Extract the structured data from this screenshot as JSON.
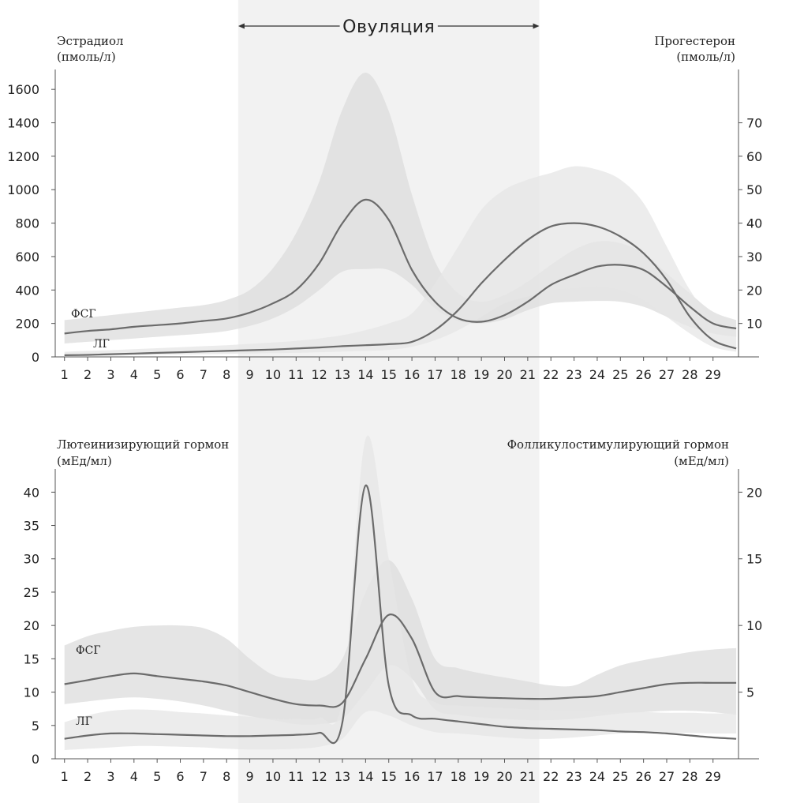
{
  "chart_data": [
    {
      "type": "area",
      "title": "",
      "shaded_region_label": "Овуляция",
      "shaded_region": [
        8.5,
        21.5
      ],
      "x": [
        1,
        2,
        3,
        4,
        5,
        6,
        7,
        8,
        9,
        10,
        11,
        12,
        13,
        14,
        15,
        16,
        17,
        18,
        19,
        20,
        21,
        22,
        23,
        24,
        25,
        26,
        27,
        28,
        29,
        30
      ],
      "xticks": [
        1,
        2,
        3,
        4,
        5,
        6,
        7,
        8,
        9,
        10,
        11,
        12,
        13,
        14,
        15,
        16,
        17,
        18,
        19,
        20,
        21,
        22,
        23,
        24,
        25,
        26,
        27,
        28,
        29
      ],
      "xlim": [
        0.6,
        30.1
      ],
      "y_left": {
        "label_line1": "Эстрадиол",
        "label_line2": "(пмоль/л)",
        "ylim": [
          0,
          1700
        ],
        "ticks": [
          0,
          200,
          400,
          600,
          800,
          1000,
          1200,
          1400,
          1600
        ]
      },
      "y_right": {
        "label_line1": "Прогестерон",
        "label_line2": "(пмоль/л)",
        "ylim": [
          0,
          85
        ],
        "ticks": [
          10,
          20,
          30,
          40,
          50,
          60,
          70
        ],
        "tick_labels": [
          "10",
          "20",
          "30",
          "40",
          "50",
          "60",
          "70"
        ]
      },
      "series": [
        {
          "label": "ФСГ",
          "axis": "left",
          "values": [
            140,
            155,
            165,
            180,
            190,
            200,
            215,
            230,
            265,
            320,
            400,
            560,
            800,
            940,
            820,
            520,
            330,
            230,
            210,
            250,
            330,
            430,
            490,
            540,
            550,
            520,
            420,
            300,
            200,
            170
          ],
          "band_low": [
            80,
            90,
            100,
            110,
            120,
            130,
            140,
            155,
            185,
            230,
            300,
            400,
            510,
            525,
            520,
            430,
            290,
            215,
            200,
            225,
            280,
            320,
            330,
            335,
            330,
            300,
            240,
            180,
            140,
            120
          ],
          "band_high": [
            220,
            235,
            250,
            265,
            280,
            295,
            310,
            340,
            400,
            530,
            740,
            1050,
            1480,
            1700,
            1470,
            970,
            570,
            380,
            330,
            370,
            450,
            550,
            640,
            690,
            680,
            620,
            500,
            380,
            270,
            220
          ]
        },
        {
          "label": "ЛГ",
          "axis": "right",
          "values": [
            0.5,
            0.6,
            0.8,
            1.0,
            1.2,
            1.4,
            1.6,
            1.8,
            2.0,
            2.2,
            2.5,
            2.8,
            3.2,
            3.5,
            3.8,
            4.5,
            8,
            14,
            22,
            29,
            35,
            39,
            40,
            39,
            36,
            31,
            23,
            12,
            5,
            2.5
          ],
          "band_low": [
            0.2,
            0.3,
            0.4,
            0.5,
            0.6,
            0.7,
            0.8,
            0.9,
            1.0,
            1.1,
            1.2,
            1.4,
            1.6,
            1.8,
            2.1,
            3,
            5,
            8,
            12,
            16,
            18,
            20,
            20.5,
            21,
            20,
            17,
            12,
            7,
            3,
            1.5
          ],
          "band_high": [
            1.5,
            1.8,
            2,
            2.3,
            2.6,
            2.9,
            3.2,
            3.5,
            3.9,
            4.3,
            4.8,
            5.5,
            6.5,
            8,
            10,
            13,
            22,
            33,
            44,
            50,
            53,
            55,
            57,
            56,
            53,
            46,
            33,
            20,
            11,
            8
          ]
        }
      ]
    },
    {
      "type": "area",
      "title": "",
      "x": [
        1,
        2,
        3,
        4,
        5,
        6,
        7,
        8,
        9,
        10,
        11,
        12,
        13,
        14,
        15,
        16,
        17,
        18,
        19,
        20,
        21,
        22,
        23,
        24,
        25,
        26,
        27,
        28,
        29,
        30
      ],
      "xticks": [
        1,
        2,
        3,
        4,
        5,
        6,
        7,
        8,
        9,
        10,
        11,
        12,
        13,
        14,
        15,
        16,
        17,
        18,
        19,
        20,
        21,
        22,
        23,
        24,
        25,
        26,
        27,
        28,
        29
      ],
      "xlim": [
        0.6,
        30.1
      ],
      "y_left": {
        "label": "Лютеинизирующий гормон",
        "unit": "(мЕд/мл)",
        "ylim": [
          0,
          43
        ],
        "ticks": [
          0,
          5,
          10,
          15,
          20,
          25,
          30,
          35,
          40
        ]
      },
      "y_right": {
        "label": "Фолликулостимулирующий гормон",
        "unit": "(мЕд/мл)",
        "ylim": [
          0,
          21.5
        ],
        "ticks": [
          5,
          10,
          15,
          20
        ]
      },
      "series": [
        {
          "label": "ФСГ",
          "axis": "right",
          "values": [
            5.6,
            5.9,
            6.2,
            6.4,
            6.2,
            6.0,
            5.8,
            5.5,
            5.0,
            4.5,
            4.1,
            4.0,
            4.2,
            7.5,
            10.8,
            9.0,
            5.0,
            4.7,
            4.6,
            4.55,
            4.5,
            4.5,
            4.6,
            4.7,
            5.0,
            5.3,
            5.6,
            5.7,
            5.7,
            5.7
          ],
          "band_low": [
            4.1,
            4.3,
            4.5,
            4.6,
            4.5,
            4.3,
            4.0,
            3.6,
            3.2,
            2.9,
            2.6,
            2.6,
            3.0,
            5.0,
            7.0,
            6.0,
            3.7,
            3.3,
            3.1,
            3.0,
            2.9,
            2.9,
            3.0,
            3.2,
            3.4,
            3.5,
            3.6,
            3.6,
            3.5,
            3.3
          ],
          "band_high": [
            8.5,
            9.2,
            9.6,
            9.9,
            10.0,
            10.0,
            9.8,
            9.0,
            7.5,
            6.3,
            6.0,
            6.0,
            7.5,
            12.5,
            14.9,
            12.0,
            7.5,
            6.8,
            6.4,
            6.1,
            5.8,
            5.5,
            5.5,
            6.3,
            7.0,
            7.4,
            7.7,
            8.0,
            8.2,
            8.3
          ]
        },
        {
          "label": "ЛГ",
          "axis": "left",
          "values": [
            3.0,
            3.5,
            3.8,
            3.8,
            3.7,
            3.6,
            3.5,
            3.4,
            3.4,
            3.5,
            3.6,
            3.9,
            5.5,
            41,
            11,
            6.5,
            6.0,
            5.6,
            5.2,
            4.8,
            4.6,
            4.5,
            4.4,
            4.3,
            4.1,
            4.0,
            3.8,
            3.5,
            3.2,
            3.0
          ],
          "band_low": [
            1.3,
            1.5,
            1.7,
            1.9,
            1.9,
            1.8,
            1.7,
            1.5,
            1.4,
            1.4,
            1.5,
            1.8,
            3.0,
            7.0,
            6.5,
            5.0,
            4.0,
            3.8,
            3.5,
            3.2,
            3.0,
            3.0,
            3.2,
            3.5,
            3.8,
            3.9,
            3.9,
            3.9,
            3.8,
            3.8
          ],
          "band_high": [
            5.5,
            6.5,
            7.2,
            7.4,
            7.3,
            7.0,
            6.8,
            6.5,
            6.3,
            6.0,
            6.0,
            6.2,
            9.0,
            48,
            30,
            12,
            8.5,
            8.0,
            7.8,
            7.6,
            7.4,
            7.3,
            7.2,
            7.1,
            7.0,
            7.0,
            6.9,
            6.9,
            6.8,
            6.8
          ]
        }
      ]
    }
  ]
}
